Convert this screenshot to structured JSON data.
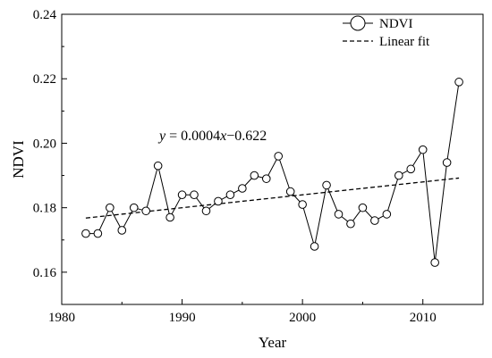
{
  "chart_data": {
    "type": "line",
    "xlabel": "Year",
    "ylabel": "NDVI",
    "xlim": [
      1980,
      2015
    ],
    "ylim": [
      0.15,
      0.24
    ],
    "x_ticks": [
      "1980",
      "1990",
      "2000",
      "2010"
    ],
    "y_ticks": [
      "0.16",
      "0.18",
      "0.20",
      "0.22",
      "0.24"
    ],
    "series": [
      {
        "name": "NDVI",
        "marker": "open-circle",
        "color": "#000000",
        "x": [
          1982,
          1983,
          1984,
          1985,
          1986,
          1987,
          1988,
          1989,
          1990,
          1991,
          1992,
          1993,
          1994,
          1995,
          1996,
          1997,
          1998,
          1999,
          2000,
          2001,
          2002,
          2003,
          2004,
          2005,
          2006,
          2007,
          2008,
          2009,
          2010,
          2011,
          2012,
          2013
        ],
        "values": [
          0.172,
          0.172,
          0.18,
          0.173,
          0.18,
          0.179,
          0.193,
          0.177,
          0.184,
          0.184,
          0.179,
          0.182,
          0.184,
          0.186,
          0.19,
          0.189,
          0.196,
          0.185,
          0.181,
          0.168,
          0.187,
          0.178,
          0.175,
          0.18,
          0.176,
          0.178,
          0.19,
          0.192,
          0.198,
          0.163,
          0.194,
          0.219
        ]
      },
      {
        "name": "Linear fit",
        "style": "dashed",
        "color": "#000000",
        "x": [
          1982,
          2013
        ],
        "values": [
          0.1768,
          0.1892
        ]
      }
    ],
    "annotations": [
      {
        "y_var": "y",
        "eq_mid": " = 0.0004",
        "x_var": "x",
        "eq_tail": "−0.622"
      }
    ],
    "legend": {
      "placement": "top-right",
      "entries": [
        "NDVI",
        "Linear fit"
      ]
    },
    "grid": false
  }
}
